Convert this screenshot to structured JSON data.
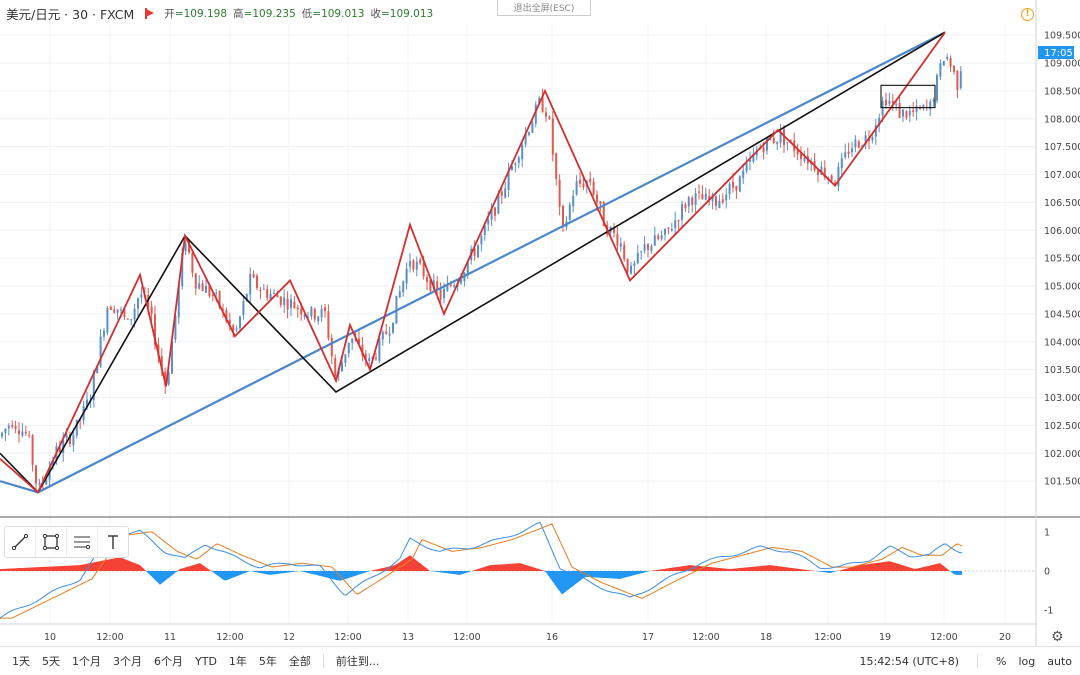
{
  "header": {
    "symbol": "美元/日元 · 30 · FXCM",
    "ohlc": [
      {
        "label": "开",
        "value": "=109.198"
      },
      {
        "label": "高",
        "value": "=109.235"
      },
      {
        "label": "低",
        "value": "=109.013"
      },
      {
        "label": "收",
        "value": "=109.013"
      }
    ],
    "exit_fullscreen": "退出全屏(ESC)",
    "warning_icon": "!"
  },
  "price_axis": {
    "ticks": [
      "109.500",
      "109.000",
      "108.500",
      "108.000",
      "107.500",
      "107.000",
      "106.500",
      "106.000",
      "105.500",
      "105.000",
      "104.500",
      "104.000",
      "103.500",
      "103.000",
      "102.500",
      "102.000",
      "101.500"
    ],
    "current_label": "17:05"
  },
  "indicator_axis": {
    "ticks": [
      "1",
      "0",
      "-1"
    ]
  },
  "time_axis": {
    "ticks": [
      "10",
      "12:00",
      "11",
      "12:00",
      "12",
      "12:00",
      "13",
      "12:00",
      "16",
      "17",
      "12:00",
      "18",
      "12:00",
      "19",
      "12:00",
      "20"
    ]
  },
  "bottom_bar": {
    "ranges": [
      "1天",
      "5天",
      "1个月",
      "3个月",
      "6个月",
      "YTD",
      "1年",
      "5年",
      "全部"
    ],
    "goto": "前往到...",
    "clock": "15:42:54 (UTC+8)",
    "percent": "%",
    "log": "log",
    "auto": "auto"
  },
  "colors": {
    "up": "#5b8fc9",
    "down": "#e05a4f",
    "zigzag_red": "#d32f2f",
    "zigzag_black": "#111111",
    "trend_blue": "#4a86c8",
    "macd_pos": "#f44336",
    "macd_neg": "#2196f3",
    "signal": "#e67e22"
  },
  "chart_data": {
    "type": "candlestick",
    "title": "美元/日元 · 30 · FXCM",
    "ylim": [
      101.0,
      109.7
    ],
    "x_ticks": [
      "10",
      "12:00",
      "11",
      "12:00",
      "12",
      "12:00",
      "13",
      "12:00",
      "16",
      "17",
      "12:00",
      "18",
      "12:00",
      "19",
      "12:00",
      "20"
    ],
    "anchors": [
      [
        0,
        102.3
      ],
      [
        12,
        102.6
      ],
      [
        28,
        102.3
      ],
      [
        38,
        101.3
      ],
      [
        55,
        102.0
      ],
      [
        75,
        102.4
      ],
      [
        90,
        103.0
      ],
      [
        108,
        104.7
      ],
      [
        118,
        104.6
      ],
      [
        128,
        104.3
      ],
      [
        140,
        104.9
      ],
      [
        150,
        104.5
      ],
      [
        158,
        103.8
      ],
      [
        166,
        103.2
      ],
      [
        175,
        104.4
      ],
      [
        185,
        105.9
      ],
      [
        195,
        105.1
      ],
      [
        215,
        104.8
      ],
      [
        235,
        104.1
      ],
      [
        250,
        105.1
      ],
      [
        265,
        104.9
      ],
      [
        290,
        104.7
      ],
      [
        310,
        104.5
      ],
      [
        325,
        104.5
      ],
      [
        336,
        103.3
      ],
      [
        350,
        104.1
      ],
      [
        370,
        103.6
      ],
      [
        390,
        104.3
      ],
      [
        410,
        105.5
      ],
      [
        425,
        105.2
      ],
      [
        440,
        104.8
      ],
      [
        460,
        105.2
      ],
      [
        480,
        105.8
      ],
      [
        500,
        106.6
      ],
      [
        520,
        107.5
      ],
      [
        540,
        108.3
      ],
      [
        548,
        108.1
      ],
      [
        556,
        106.9
      ],
      [
        562,
        105.9
      ],
      [
        575,
        106.8
      ],
      [
        590,
        106.9
      ],
      [
        605,
        106.1
      ],
      [
        620,
        105.8
      ],
      [
        630,
        105.2
      ],
      [
        645,
        105.7
      ],
      [
        665,
        105.9
      ],
      [
        690,
        106.6
      ],
      [
        715,
        106.5
      ],
      [
        740,
        106.9
      ],
      [
        760,
        107.5
      ],
      [
        780,
        107.7
      ],
      [
        800,
        107.4
      ],
      [
        820,
        107.1
      ],
      [
        835,
        106.9
      ],
      [
        850,
        107.5
      ],
      [
        870,
        107.7
      ],
      [
        885,
        108.4
      ],
      [
        900,
        108.1
      ],
      [
        915,
        108.1
      ],
      [
        930,
        108.2
      ],
      [
        945,
        109.2
      ],
      [
        952,
        108.9
      ],
      [
        958,
        108.6
      ],
      [
        962,
        109.1
      ]
    ],
    "zigzag_red": [
      [
        0,
        101.9
      ],
      [
        38,
        101.3
      ],
      [
        140,
        105.2
      ],
      [
        166,
        103.2
      ],
      [
        185,
        105.9
      ],
      [
        235,
        104.1
      ],
      [
        290,
        105.1
      ],
      [
        336,
        103.3
      ],
      [
        350,
        104.3
      ],
      [
        370,
        103.5
      ],
      [
        410,
        106.1
      ],
      [
        444,
        104.5
      ],
      [
        545,
        108.5
      ],
      [
        630,
        105.1
      ],
      [
        778,
        107.8
      ],
      [
        835,
        106.8
      ],
      [
        945,
        109.55
      ]
    ],
    "zigzag_black": [
      [
        0,
        102.0
      ],
      [
        38,
        101.3
      ],
      [
        185,
        105.9
      ],
      [
        336,
        103.1
      ],
      [
        945,
        109.55
      ]
    ],
    "trend_blue": [
      [
        0,
        101.5
      ],
      [
        38,
        101.3
      ],
      [
        945,
        109.55
      ]
    ],
    "rectangle": [
      [
        881,
        108.6
      ],
      [
        935,
        108.2
      ]
    ],
    "macd": {
      "ylim": [
        -1.3,
        1.3
      ],
      "line_anchors": [
        [
          0,
          -1.2
        ],
        [
          40,
          -0.7
        ],
        [
          80,
          -0.2
        ],
        [
          110,
          0.9
        ],
        [
          140,
          1.0
        ],
        [
          165,
          0.5
        ],
        [
          185,
          0.3
        ],
        [
          205,
          0.7
        ],
        [
          230,
          0.4
        ],
        [
          260,
          0.1
        ],
        [
          290,
          0.2
        ],
        [
          320,
          0.1
        ],
        [
          345,
          -0.6
        ],
        [
          370,
          -0.2
        ],
        [
          400,
          0.3
        ],
        [
          410,
          0.8
        ],
        [
          440,
          0.5
        ],
        [
          470,
          0.6
        ],
        [
          500,
          0.8
        ],
        [
          540,
          1.2
        ],
        [
          560,
          0.1
        ],
        [
          590,
          -0.3
        ],
        [
          630,
          -0.7
        ],
        [
          660,
          -0.3
        ],
        [
          700,
          0.2
        ],
        [
          730,
          0.4
        ],
        [
          760,
          0.6
        ],
        [
          790,
          0.5
        ],
        [
          820,
          0.1
        ],
        [
          840,
          0.1
        ],
        [
          870,
          0.3
        ],
        [
          890,
          0.6
        ],
        [
          910,
          0.4
        ],
        [
          930,
          0.4
        ],
        [
          945,
          0.7
        ],
        [
          960,
          0.5
        ]
      ],
      "hist_anchors": [
        [
          0,
          0.05
        ],
        [
          40,
          0.1
        ],
        [
          80,
          0.15
        ],
        [
          100,
          0.25
        ],
        [
          120,
          0.35
        ],
        [
          140,
          0.15
        ],
        [
          160,
          -0.35
        ],
        [
          180,
          0.05
        ],
        [
          200,
          0.2
        ],
        [
          225,
          -0.25
        ],
        [
          250,
          0.0
        ],
        [
          270,
          -0.1
        ],
        [
          300,
          0.0
        ],
        [
          340,
          -0.25
        ],
        [
          370,
          0.0
        ],
        [
          395,
          0.15
        ],
        [
          410,
          0.4
        ],
        [
          430,
          0.0
        ],
        [
          460,
          -0.1
        ],
        [
          490,
          0.15
        ],
        [
          520,
          0.2
        ],
        [
          545,
          0.0
        ],
        [
          562,
          -0.6
        ],
        [
          585,
          -0.15
        ],
        [
          620,
          -0.2
        ],
        [
          650,
          0.0
        ],
        [
          690,
          0.15
        ],
        [
          730,
          0.05
        ],
        [
          770,
          0.15
        ],
        [
          800,
          0.05
        ],
        [
          830,
          -0.05
        ],
        [
          860,
          0.15
        ],
        [
          890,
          0.25
        ],
        [
          915,
          0.05
        ],
        [
          940,
          0.2
        ],
        [
          955,
          -0.1
        ]
      ],
      "signal_lag": 12
    }
  }
}
